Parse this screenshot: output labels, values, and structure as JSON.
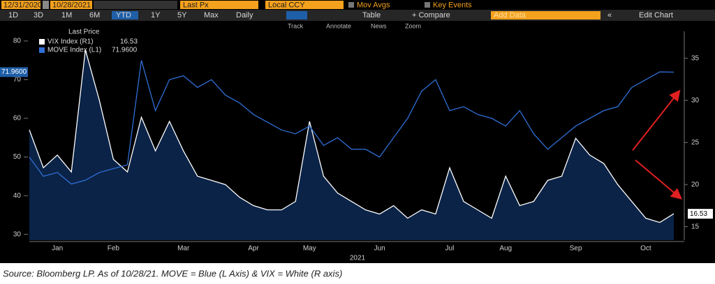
{
  "toolbar": {
    "start_date": "12/31/2020",
    "end_date": "10/28/2021",
    "field": "Last Px",
    "currency": "Local CCY",
    "mov_avgs": "Mov Avgs",
    "key_events": "Key Events",
    "ranges": [
      "1D",
      "3D",
      "1M",
      "6M",
      "YTD",
      "1Y",
      "5Y",
      "Max"
    ],
    "active_range": 4,
    "period": "Daily",
    "table": "Table",
    "compare": "+ Compare",
    "add_data": "Add Data",
    "edit_chart": "Edit Chart",
    "tools": [
      "Track",
      "Annotate",
      "News",
      "Zoom"
    ]
  },
  "chart_data": {
    "type": "line",
    "legend_title": "Last Price",
    "x_axis_label": "2021",
    "categories": [
      null,
      null,
      "Jan",
      null,
      null,
      null,
      "Feb",
      null,
      null,
      null,
      null,
      "Mar",
      null,
      null,
      null,
      null,
      "Apr",
      null,
      null,
      null,
      "May",
      null,
      null,
      null,
      null,
      "Jun",
      null,
      null,
      null,
      null,
      "Jul",
      null,
      null,
      null,
      "Aug",
      null,
      null,
      null,
      null,
      "Sep",
      null,
      null,
      null,
      null,
      "Oct",
      null,
      null
    ],
    "series": [
      {
        "name": "VIX Index (R1)",
        "color": "#ffffff",
        "fill": "#0b2347",
        "axis": "y2",
        "values": [
          26.5,
          22,
          23.5,
          21.5,
          36,
          30,
          23,
          21.5,
          28,
          24,
          27.5,
          24,
          21,
          20.5,
          20,
          18.5,
          17.5,
          17,
          17,
          18,
          27.5,
          21,
          19,
          18,
          17,
          16.5,
          17.5,
          16,
          17,
          16.5,
          22,
          18,
          17,
          16,
          21,
          17.5,
          18,
          20.5,
          21,
          25.5,
          23.5,
          22.5,
          20,
          18,
          16,
          15.5,
          16.53
        ],
        "value_labels": [
          null,
          null,
          null,
          null,
          null,
          null,
          null,
          null,
          null,
          null,
          null,
          null,
          null,
          null,
          null,
          null,
          null,
          null,
          null,
          null,
          null,
          null,
          null,
          null,
          null,
          null,
          null,
          null,
          null,
          null,
          null,
          null,
          null,
          null,
          null,
          null,
          null,
          null,
          null,
          null,
          null,
          null,
          null,
          null,
          null,
          null,
          "16.53"
        ]
      },
      {
        "name": "MOVE Index (L1)",
        "color": "#2f6fd6",
        "axis": "y",
        "values": [
          50,
          45,
          46,
          43,
          44,
          46,
          47,
          48,
          75,
          62,
          70,
          71,
          68,
          70,
          66,
          64,
          61,
          59,
          57,
          56,
          58,
          53,
          55,
          52,
          52,
          50,
          55,
          60,
          67,
          70,
          62,
          63,
          61,
          60,
          58,
          62,
          56,
          52,
          55,
          58,
          60,
          62,
          63,
          68,
          70,
          72,
          71.96
        ],
        "value_labels": [
          null,
          null,
          null,
          null,
          null,
          null,
          null,
          null,
          null,
          null,
          null,
          null,
          null,
          null,
          null,
          null,
          null,
          null,
          null,
          null,
          null,
          null,
          null,
          null,
          null,
          null,
          null,
          null,
          null,
          null,
          null,
          null,
          null,
          null,
          null,
          null,
          null,
          null,
          null,
          null,
          null,
          null,
          null,
          null,
          null,
          null,
          "71.9600"
        ]
      }
    ],
    "ylim": [
      28.5,
      82.5
    ],
    "yticks": [
      30,
      40,
      50,
      60,
      70,
      80
    ],
    "y2lim": [
      13.4,
      38.2
    ],
    "y2ticks": [
      15,
      20,
      25,
      30,
      35
    ],
    "grid": false
  },
  "source": "Source: Bloomberg LP. As of 10/28/21. MOVE = Blue (L Axis) & VIX = White (R axis)"
}
